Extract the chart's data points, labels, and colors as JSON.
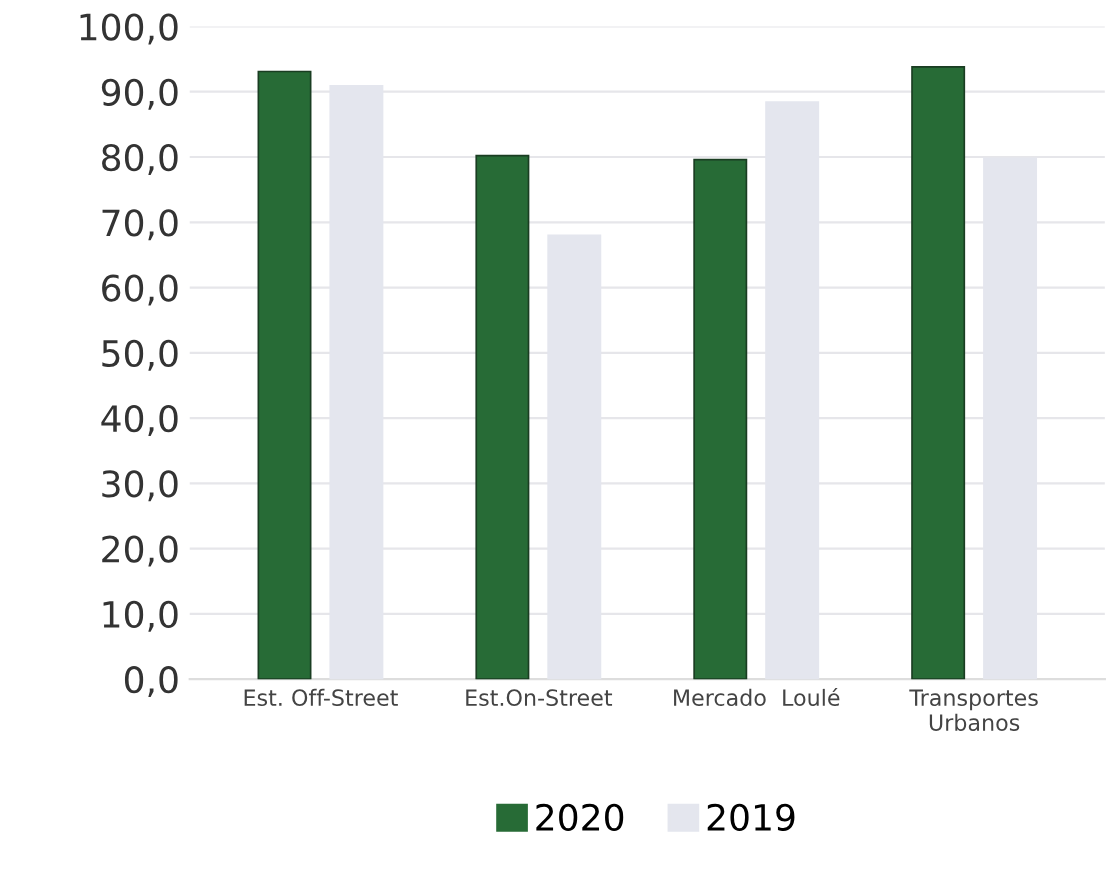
{
  "chart_data": {
    "type": "bar",
    "categories": [
      "Est. Off-Street",
      "Est.On-Street",
      "Mercado  Loulé",
      "Transportes\nUrbanos"
    ],
    "series": [
      {
        "name": "2020",
        "color": "#276b36",
        "values": [
          93.1,
          80.2,
          79.6,
          93.8
        ]
      },
      {
        "name": "2019",
        "color": "#e4e6ee",
        "values": [
          90.9,
          68.0,
          88.4,
          79.8
        ]
      }
    ],
    "ylim": [
      0,
      100
    ],
    "yticks": [
      {
        "value": 0,
        "label": "0,0"
      },
      {
        "value": 10,
        "label": "10,0"
      },
      {
        "value": 20,
        "label": "20,0"
      },
      {
        "value": 30,
        "label": "30,0"
      },
      {
        "value": 40,
        "label": "40,0"
      },
      {
        "value": 50,
        "label": "50,0"
      },
      {
        "value": 60,
        "label": "60,0"
      },
      {
        "value": 70,
        "label": "70,0"
      },
      {
        "value": 80,
        "label": "80,0"
      },
      {
        "value": 90,
        "label": "90,0"
      },
      {
        "value": 100,
        "label": "100,0"
      }
    ],
    "grid": "y",
    "legend": "bottom"
  }
}
